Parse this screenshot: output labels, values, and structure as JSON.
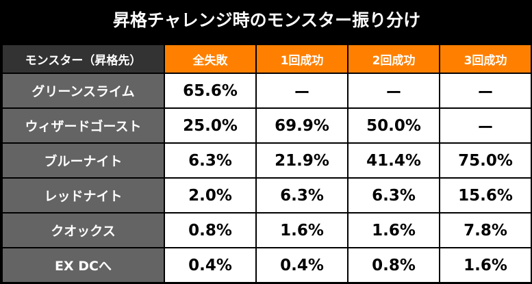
{
  "title": "昇格チャレンジ時のモンスター振り分け",
  "headers": [
    "モンスター（昇格先）",
    "全失敗",
    "1回成功",
    "2回成功",
    "3回成功"
  ],
  "rows": [
    {
      "name": "グリーンスライム",
      "values": [
        "65.6%",
        "ー",
        "ー",
        "ー"
      ]
    },
    {
      "name": "ウィザードゴースト",
      "values": [
        "25.0%",
        "69.9%",
        "50.0%",
        "ー"
      ]
    },
    {
      "name": "ブルーナイト",
      "values": [
        "6.3%",
        "21.9%",
        "41.4%",
        "75.0%"
      ]
    },
    {
      "name": "レッドナイト",
      "values": [
        "2.0%",
        "6.3%",
        "6.3%",
        "15.6%"
      ]
    },
    {
      "name": "クオックス",
      "values": [
        "0.8%",
        "1.6%",
        "1.6%",
        "7.8%"
      ]
    },
    {
      "name": "EX DCへ",
      "values": [
        "0.4%",
        "0.4%",
        "0.8%",
        "1.6%"
      ]
    }
  ],
  "colors": {
    "header_accent": "#ff8000",
    "name_column": "#646464",
    "header_first": "#333333"
  }
}
